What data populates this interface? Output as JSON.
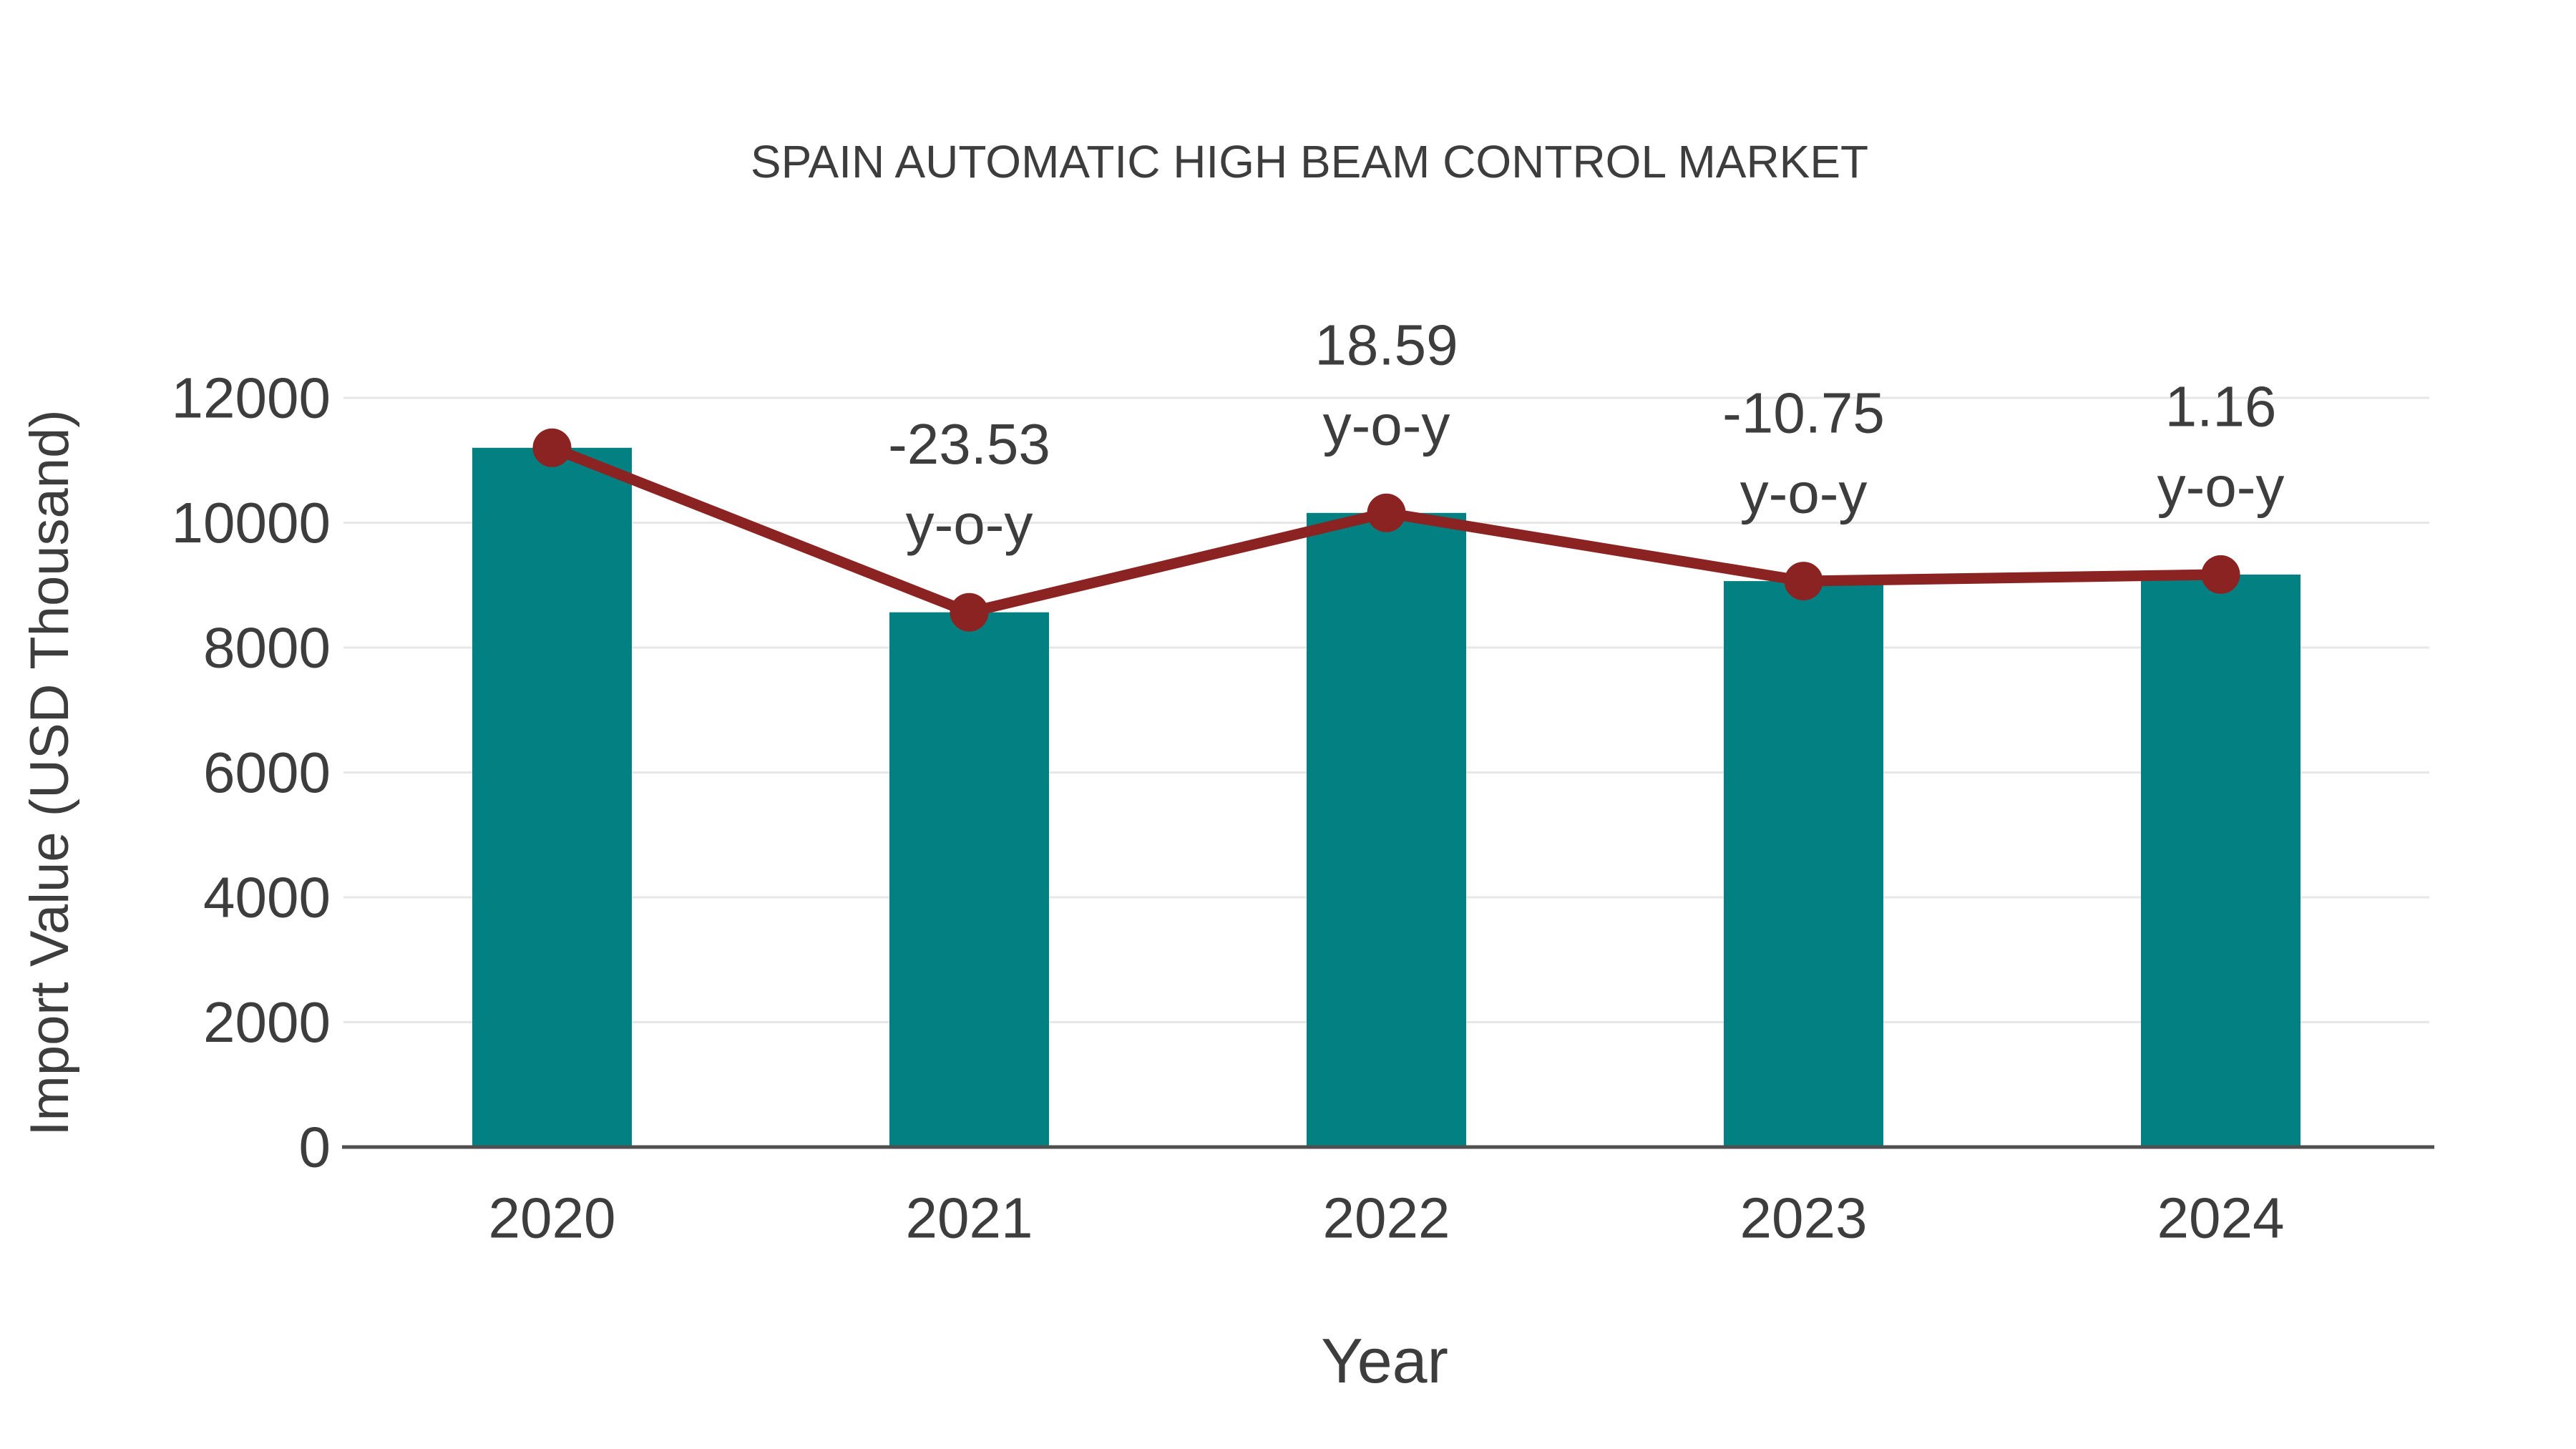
{
  "chart_data": {
    "type": "bar",
    "title": "SPAIN AUTOMATIC HIGH BEAM CONTROL MARKET",
    "xlabel": "Year",
    "ylabel": "Import Value (USD Thousand)",
    "categories": [
      "2020",
      "2021",
      "2022",
      "2023",
      "2024"
    ],
    "values": [
      11200,
      8565,
      10157,
      9065,
      9170
    ],
    "line_overlay": {
      "name": "y-o-y trend",
      "values": [
        11200,
        8565,
        10157,
        9065,
        9170
      ]
    },
    "yoy_percent": [
      null,
      -23.53,
      18.59,
      -10.75,
      1.16
    ],
    "annotations": [
      {
        "category": "2021",
        "line1": "-23.53",
        "line2": "y-o-y"
      },
      {
        "category": "2022",
        "line1": "18.59",
        "line2": "y-o-y"
      },
      {
        "category": "2023",
        "line1": "-10.75",
        "line2": "y-o-y"
      },
      {
        "category": "2024",
        "line1": "1.16",
        "line2": "y-o-y"
      }
    ],
    "ylim": [
      0,
      12000
    ],
    "yticks": [
      0,
      2000,
      4000,
      6000,
      8000,
      10000,
      12000
    ],
    "grid": true,
    "legend": "none",
    "colors": {
      "bar": "#038081",
      "line": "#8b2322",
      "marker": "#8b2322",
      "text": "#3d3d3d",
      "grid": "#e7e7e7",
      "axis": "#4f4f4f",
      "background": "#ffffff"
    }
  }
}
